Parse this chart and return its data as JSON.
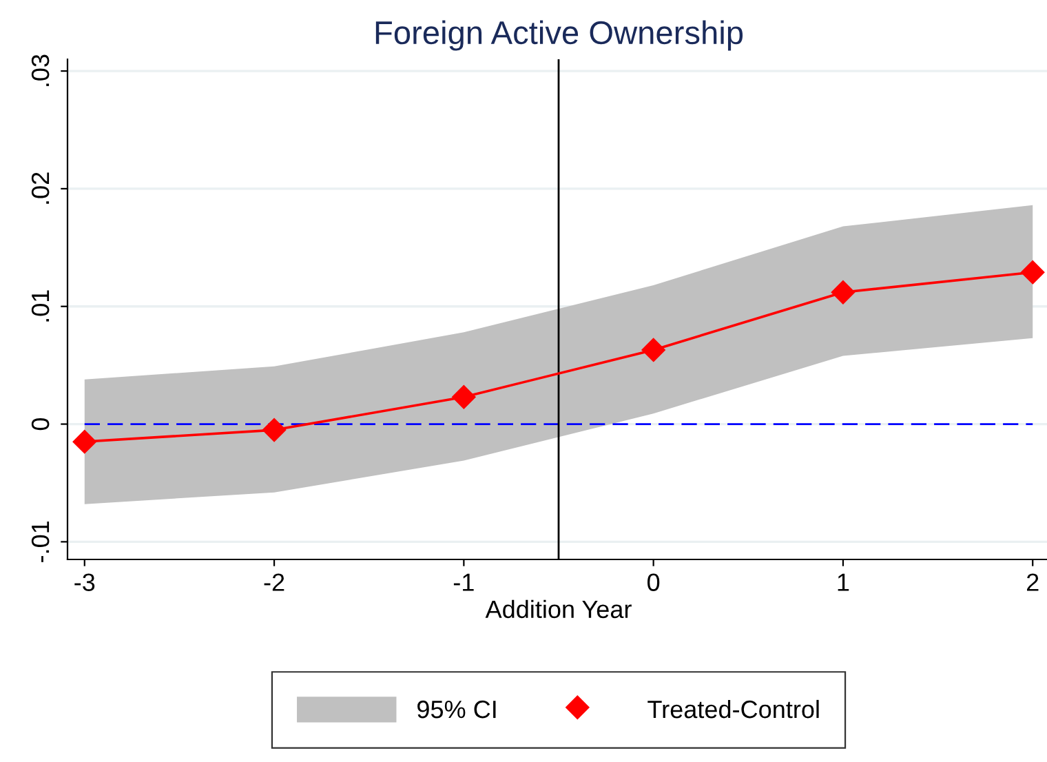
{
  "chart_data": {
    "type": "line",
    "title": "Foreign Active Ownership",
    "xlabel": "Addition Year",
    "x": [
      -3,
      -2,
      -1,
      0,
      1,
      2
    ],
    "series": [
      {
        "name": "95% CI",
        "type": "area",
        "color": "#c0c0c0",
        "values": [
          null,
          null,
          null,
          null,
          null,
          null
        ],
        "lower": [
          -0.0068,
          -0.0058,
          -0.0031,
          0.0009,
          0.0058,
          0.0073
        ],
        "upper": [
          0.0038,
          0.0049,
          0.0078,
          0.0118,
          0.0168,
          0.0186
        ]
      },
      {
        "name": "Treated-Control",
        "color": "#ff0000",
        "values": [
          -0.0015,
          -0.0005,
          0.0023,
          0.0063,
          0.0112,
          0.0129
        ],
        "marker": "diamond"
      }
    ],
    "xlim": [
      -3.09,
      2.09
    ],
    "ylim": [
      -0.0115,
      0.031
    ],
    "xticks": [
      -3,
      -2,
      -1,
      0,
      1,
      2
    ],
    "yticks": [
      {
        "value": -0.01,
        "label": "-.01"
      },
      0,
      {
        "value": 0.01,
        "label": ".01"
      },
      {
        "value": 0.02,
        "label": ".02"
      },
      {
        "value": 0.03,
        "label": ".03"
      }
    ],
    "ref_lines": [
      {
        "axis": "y",
        "value": 0,
        "color": "#0000ff",
        "line_style": "dashed"
      },
      {
        "axis": "x",
        "value": -0.5,
        "color": "#000000",
        "line_style": "solid"
      }
    ],
    "grid": "y",
    "legend": "bottom"
  }
}
